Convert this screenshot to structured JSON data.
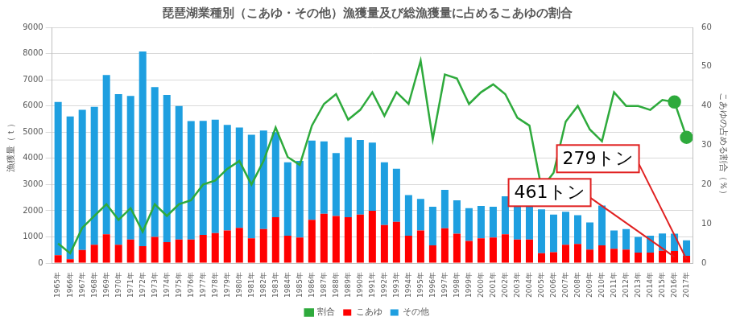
{
  "chart_data": {
    "type": "bar",
    "title": "琵琶湖業種別（こあゆ・その他）漁獲量及び総漁獲量に占めるこあゆの割合",
    "y_label": "漁獲量（ｔ）",
    "y2_label": "こあゆの占める割合（％）",
    "categories": [
      "1965年",
      "1966年",
      "1967年",
      "1968年",
      "1969年",
      "1970年",
      "1971年",
      "1972年",
      "1973年",
      "1974年",
      "1975年",
      "1976年",
      "1977年",
      "1978年",
      "1979年",
      "1980年",
      "1981年",
      "1982年",
      "1983年",
      "1984年",
      "1985年",
      "1986年",
      "1987年",
      "1988年",
      "1989年",
      "1990年",
      "1991年",
      "1992年",
      "1993年",
      "1994年",
      "1995年",
      "1996年",
      "1997年",
      "1998年",
      "1999年",
      "2000年",
      "2001年",
      "2002年",
      "2003年",
      "2004年",
      "2005年",
      "2006年",
      "2007年",
      "2008年",
      "2009年",
      "2010年",
      "2011年",
      "2012年",
      "2013年",
      "2014年",
      "2015年",
      "2016年",
      "2017年"
    ],
    "series": [
      {
        "name": "こあゆ",
        "type": "bar",
        "color": "#ff0000",
        "values": [
          300,
          150,
          500,
          700,
          1100,
          700,
          900,
          650,
          1000,
          800,
          900,
          900,
          1080,
          1150,
          1250,
          1350,
          950,
          1300,
          1750,
          1050,
          980,
          1650,
          1880,
          1800,
          1750,
          1850,
          2000,
          1450,
          1580,
          1050,
          1250,
          680,
          1330,
          1120,
          850,
          950,
          980,
          1100,
          900,
          900,
          380,
          420,
          700,
          730,
          520,
          680,
          550,
          520,
          400,
          400,
          470,
          461,
          279
        ]
      },
      {
        "name": "その他",
        "type": "bar",
        "color": "#1e9fe0",
        "values": [
          5850,
          5450,
          5350,
          5270,
          6080,
          5750,
          5480,
          7430,
          5720,
          5620,
          5100,
          4520,
          4350,
          4330,
          4030,
          3830,
          3950,
          3760,
          3250,
          2800,
          2920,
          3030,
          2770,
          2400,
          3050,
          2850,
          2600,
          2400,
          2020,
          1550,
          1200,
          1470,
          1470,
          1280,
          1250,
          1230,
          1170,
          1450,
          1550,
          1700,
          1670,
          1430,
          1260,
          1100,
          1030,
          1520,
          700,
          780,
          600,
          650,
          660,
          659,
          591
        ]
      },
      {
        "name": "割合",
        "type": "line",
        "axis": "y2",
        "color": "#2eaa3c",
        "marker": "none",
        "values": [
          5,
          2.5,
          9,
          12,
          15,
          11,
          14,
          8,
          15,
          12,
          15,
          16,
          20,
          21,
          24,
          26,
          20,
          26,
          34.5,
          27,
          25,
          35,
          40.5,
          43,
          36.5,
          39,
          43.5,
          37.5,
          43.5,
          40.5,
          51.5,
          31.5,
          48,
          47,
          40.5,
          43.5,
          45.5,
          43,
          37,
          35,
          19,
          23,
          36,
          40,
          34,
          31,
          43.5,
          40,
          40,
          39,
          41.5,
          41,
          32
        ]
      }
    ],
    "annotations": [
      {
        "text": "461トン",
        "category": "2016年",
        "series": "こあゆ"
      },
      {
        "text": "279トン",
        "category": "2017年",
        "series": "こあゆ"
      }
    ],
    "stacked": true,
    "ylim": [
      0,
      9000
    ],
    "yticks": [
      0,
      1000,
      2000,
      3000,
      4000,
      5000,
      6000,
      7000,
      8000,
      9000
    ],
    "y2lim": [
      0,
      60
    ],
    "y2ticks": [
      0,
      10,
      20,
      30,
      40,
      50,
      60
    ],
    "grid": true,
    "legend": "bottom"
  }
}
